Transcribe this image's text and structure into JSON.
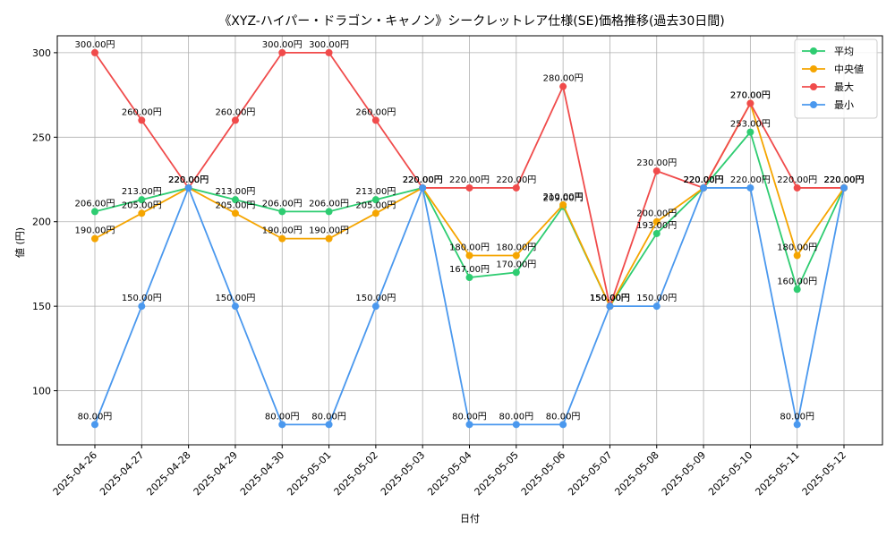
{
  "chart_data": {
    "type": "line",
    "title": "《XYZ-ハイパー・ドラゴン・キャノン》シークレットレア仕様(SE)価格推移(過去30日間)",
    "xlabel": "日付",
    "ylabel": "値 (円)",
    "ylim": [
      68,
      310
    ],
    "yticks": [
      100,
      150,
      200,
      250,
      300
    ],
    "grid": true,
    "legend_position": "top-right",
    "value_suffix": "円",
    "categories": [
      "2025-04-26",
      "2025-04-27",
      "2025-04-28",
      "2025-04-29",
      "2025-04-30",
      "2025-05-01",
      "2025-05-02",
      "2025-05-03",
      "2025-05-04",
      "2025-05-05",
      "2025-05-06",
      "2025-05-07",
      "2025-05-08",
      "2025-05-09",
      "2025-05-10",
      "2025-05-11",
      "2025-05-12"
    ],
    "series": [
      {
        "name": "平均",
        "color": "#2ecc71",
        "values": [
          206,
          213,
          220,
          213,
          206,
          206,
          213,
          220,
          167,
          170,
          209,
          150,
          193,
          220,
          253,
          160,
          220
        ]
      },
      {
        "name": "中央値",
        "color": "#f5a500",
        "values": [
          190,
          205,
          220,
          205,
          190,
          190,
          205,
          220,
          180,
          180,
          210,
          150,
          200,
          220,
          270,
          180,
          220
        ]
      },
      {
        "name": "最大",
        "color": "#f04b4b",
        "values": [
          300,
          260,
          220,
          260,
          300,
          300,
          260,
          220,
          220,
          220,
          280,
          150,
          230,
          220,
          270,
          220,
          220
        ]
      },
      {
        "name": "最小",
        "color": "#4a98ee",
        "values": [
          80,
          150,
          220,
          150,
          80,
          80,
          150,
          220,
          80,
          80,
          80,
          150,
          150,
          220,
          220,
          80,
          220
        ]
      }
    ]
  }
}
